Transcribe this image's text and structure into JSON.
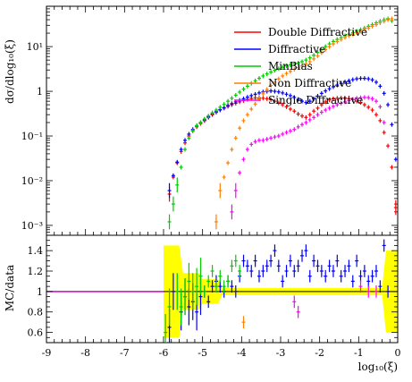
{
  "chart_data": [
    {
      "type": "scatter",
      "panel": "main",
      "ylabel": "dσ/dlog₁₀(ξ)",
      "yscale": "log",
      "ylim": [
        0.0006,
        80
      ],
      "xlim": [
        -9,
        0
      ],
      "y_tick_labels": [
        "10⁻³",
        "10⁻²",
        "10⁻¹",
        "1",
        "10¹"
      ],
      "y_tick_values": [
        0.001,
        0.01,
        0.1,
        1,
        10
      ],
      "legend_placement": "top-right",
      "series": [
        {
          "name": "Double Diffractive",
          "color": "#ff0000",
          "x": [
            -5.85,
            -5.75,
            -5.65,
            -5.55,
            -5.45,
            -5.35,
            -5.25,
            -5.15,
            -5.05,
            -4.95,
            -4.85,
            -4.75,
            -4.65,
            -4.55,
            -4.45,
            -4.35,
            -4.25,
            -4.15,
            -4.05,
            -3.95,
            -3.85,
            -3.75,
            -3.65,
            -3.55,
            -3.45,
            -3.35,
            -3.25,
            -3.15,
            -3.05,
            -2.95,
            -2.85,
            -2.75,
            -2.65,
            -2.55,
            -2.45,
            -2.35,
            -2.25,
            -2.15,
            -2.05,
            -1.95,
            -1.85,
            -1.75,
            -1.65,
            -1.55,
            -1.45,
            -1.35,
            -1.25,
            -1.15,
            -1.05,
            -0.95,
            -0.85,
            -0.75,
            -0.65,
            -0.55,
            -0.45,
            -0.35,
            -0.25,
            -0.15,
            -0.05
          ],
          "y": [
            0.005,
            0.012,
            0.025,
            0.045,
            0.07,
            0.1,
            0.13,
            0.16,
            0.19,
            0.22,
            0.26,
            0.3,
            0.34,
            0.38,
            0.42,
            0.46,
            0.5,
            0.54,
            0.58,
            0.62,
            0.66,
            0.69,
            0.71,
            0.71,
            0.7,
            0.68,
            0.65,
            0.6,
            0.55,
            0.5,
            0.45,
            0.4,
            0.36,
            0.31,
            0.28,
            0.26,
            0.3,
            0.36,
            0.42,
            0.5,
            0.58,
            0.64,
            0.68,
            0.7,
            0.71,
            0.7,
            0.68,
            0.65,
            0.6,
            0.56,
            0.5,
            0.44,
            0.38,
            0.3,
            0.22,
            0.12,
            0.06,
            0.02,
            0.0025
          ]
        },
        {
          "name": "Diffractive",
          "color": "#0000ff",
          "x": [
            -5.85,
            -5.75,
            -5.65,
            -5.55,
            -5.45,
            -5.35,
            -5.25,
            -5.15,
            -5.05,
            -4.95,
            -4.85,
            -4.75,
            -4.65,
            -4.55,
            -4.45,
            -4.35,
            -4.25,
            -4.15,
            -4.05,
            -3.95,
            -3.85,
            -3.75,
            -3.65,
            -3.55,
            -3.45,
            -3.35,
            -3.25,
            -3.15,
            -3.05,
            -2.95,
            -2.85,
            -2.75,
            -2.65,
            -2.55,
            -2.45,
            -2.35,
            -2.25,
            -2.15,
            -2.05,
            -1.95,
            -1.85,
            -1.75,
            -1.65,
            -1.55,
            -1.45,
            -1.35,
            -1.25,
            -1.15,
            -1.05,
            -0.95,
            -0.85,
            -0.75,
            -0.65,
            -0.55,
            -0.45,
            -0.35,
            -0.25,
            -0.15,
            -0.05
          ],
          "y": [
            0.006,
            0.013,
            0.026,
            0.05,
            0.08,
            0.11,
            0.14,
            0.17,
            0.2,
            0.23,
            0.27,
            0.31,
            0.35,
            0.39,
            0.43,
            0.48,
            0.53,
            0.58,
            0.63,
            0.68,
            0.74,
            0.8,
            0.86,
            0.92,
            0.97,
            1.0,
            1.02,
            1.0,
            0.97,
            0.92,
            0.86,
            0.8,
            0.73,
            0.66,
            0.6,
            0.56,
            0.6,
            0.68,
            0.78,
            0.9,
            1.02,
            1.14,
            1.26,
            1.38,
            1.5,
            1.62,
            1.72,
            1.82,
            1.9,
            1.95,
            1.95,
            1.9,
            1.8,
            1.6,
            1.3,
            0.9,
            0.5,
            0.18,
            0.03
          ]
        },
        {
          "name": "MinBias",
          "color": "#00cc00",
          "x": [
            -5.85,
            -5.75,
            -5.65,
            -5.55,
            -5.45,
            -5.35,
            -5.25,
            -5.15,
            -5.05,
            -4.95,
            -4.85,
            -4.75,
            -4.65,
            -4.55,
            -4.45,
            -4.35,
            -4.25,
            -4.15,
            -4.05,
            -3.95,
            -3.85,
            -3.75,
            -3.65,
            -3.55,
            -3.45,
            -3.35,
            -3.25,
            -3.15,
            -3.05,
            -2.95,
            -2.85,
            -2.75,
            -2.65,
            -2.55,
            -2.45,
            -2.35,
            -2.25,
            -2.15,
            -2.05,
            -1.95,
            -1.85,
            -1.75,
            -1.65,
            -1.55,
            -1.45,
            -1.35,
            -1.25,
            -1.15,
            -1.05,
            -0.95,
            -0.85,
            -0.75,
            -0.65,
            -0.55,
            -0.45,
            -0.35,
            -0.25,
            -0.15
          ],
          "y": [
            0.0012,
            0.003,
            0.008,
            0.02,
            0.05,
            0.09,
            0.13,
            0.17,
            0.2,
            0.24,
            0.28,
            0.33,
            0.38,
            0.44,
            0.51,
            0.6,
            0.7,
            0.82,
            0.96,
            1.12,
            1.3,
            1.5,
            1.72,
            1.96,
            2.2,
            2.45,
            2.7,
            2.95,
            3.2,
            3.45,
            3.7,
            3.9,
            4.1,
            4.3,
            4.6,
            5.0,
            5.6,
            6.4,
            7.4,
            8.6,
            10,
            11.5,
            13,
            14.5,
            16,
            17.5,
            19,
            20.5,
            22,
            24,
            26,
            28.5,
            31,
            34,
            37,
            40,
            42,
            38
          ]
        },
        {
          "name": "Non Diffractive",
          "color": "#ff7f00",
          "x": [
            -4.65,
            -4.55,
            -4.45,
            -4.35,
            -4.25,
            -4.15,
            -4.05,
            -3.95,
            -3.85,
            -3.75,
            -3.65,
            -3.55,
            -3.45,
            -3.35,
            -3.25,
            -3.15,
            -3.05,
            -2.95,
            -2.85,
            -2.75,
            -2.65,
            -2.55,
            -2.45,
            -2.35,
            -2.25,
            -2.15,
            -2.05,
            -1.95,
            -1.85,
            -1.75,
            -1.65,
            -1.55,
            -1.45,
            -1.35,
            -1.25,
            -1.15,
            -1.05,
            -0.95,
            -0.85,
            -0.75,
            -0.65,
            -0.55,
            -0.45,
            -0.35,
            -0.25,
            -0.15
          ],
          "y": [
            0.0012,
            0.006,
            0.012,
            0.025,
            0.05,
            0.09,
            0.15,
            0.22,
            0.3,
            0.4,
            0.52,
            0.68,
            0.88,
            1.1,
            1.35,
            1.6,
            1.9,
            2.2,
            2.5,
            2.8,
            3.1,
            3.4,
            3.7,
            4.1,
            4.6,
            5.3,
            6.2,
            7.3,
            8.6,
            10,
            11.5,
            13,
            14.5,
            16,
            17.5,
            19,
            20.5,
            22,
            24,
            26,
            28.5,
            31,
            34,
            37,
            40,
            42
          ]
        },
        {
          "name": "Single Diffractive",
          "color": "#ff00ff",
          "x": [
            -4.25,
            -4.15,
            -4.05,
            -3.95,
            -3.85,
            -3.75,
            -3.65,
            -3.55,
            -3.45,
            -3.35,
            -3.25,
            -3.15,
            -3.05,
            -2.95,
            -2.85,
            -2.75,
            -2.65,
            -2.55,
            -2.45,
            -2.35,
            -2.25,
            -2.15,
            -2.05,
            -1.95,
            -1.85,
            -1.75,
            -1.65,
            -1.55,
            -1.45,
            -1.35,
            -1.25,
            -1.15,
            -1.05,
            -0.95,
            -0.85,
            -0.75,
            -0.65,
            -0.55,
            -0.45,
            -0.35
          ],
          "y": [
            0.002,
            0.006,
            0.015,
            0.03,
            0.05,
            0.065,
            0.075,
            0.08,
            0.08,
            0.085,
            0.09,
            0.095,
            0.1,
            0.11,
            0.12,
            0.13,
            0.14,
            0.16,
            0.18,
            0.2,
            0.23,
            0.26,
            0.3,
            0.34,
            0.38,
            0.42,
            0.46,
            0.5,
            0.54,
            0.58,
            0.62,
            0.66,
            0.7,
            0.72,
            0.73,
            0.72,
            0.68,
            0.6,
            0.45,
            0.2
          ]
        }
      ]
    },
    {
      "type": "scatter",
      "panel": "ratio",
      "ylabel": "MC/data",
      "xlabel": "log₁₀(ξ)",
      "xlim": [
        -9,
        0
      ],
      "ylim": [
        0.5,
        1.55
      ],
      "x_tick_labels": [
        "-9",
        "-8",
        "-7",
        "-6",
        "-5",
        "-4",
        "-3",
        "-2",
        "-1",
        "0"
      ],
      "y_tick_labels": [
        "0.6",
        "0.8",
        "1",
        "1.2",
        "1.4"
      ],
      "y_tick_values": [
        0.6,
        0.8,
        1.0,
        1.2,
        1.4
      ],
      "band_color": "#ffff00",
      "reference_line": 1,
      "reference_line_color": "#cc00cc",
      "series": [
        {
          "name": "Diffractive",
          "color": "#0000ff",
          "x": [
            -5.85,
            -5.75,
            -5.55,
            -5.45,
            -5.35,
            -5.25,
            -5.15,
            -5.05,
            -4.95,
            -4.85,
            -4.75,
            -4.65,
            -4.55,
            -4.45,
            -4.35,
            -4.25,
            -4.15,
            -4.05,
            -3.95,
            -3.85,
            -3.75,
            -3.65,
            -3.55,
            -3.45,
            -3.35,
            -3.25,
            -3.15,
            -3.05,
            -2.95,
            -2.85,
            -2.75,
            -2.65,
            -2.55,
            -2.45,
            -2.35,
            -2.25,
            -2.15,
            -2.05,
            -1.95,
            -1.85,
            -1.75,
            -1.65,
            -1.55,
            -1.45,
            -1.35,
            -1.25,
            -1.15,
            -1.05,
            -0.95,
            -0.85,
            -0.75,
            -0.65,
            -0.55,
            -0.45,
            -0.35,
            -0.25
          ],
          "y": [
            0.65,
            1.0,
            0.8,
            0.95,
            0.85,
            0.9,
            0.8,
            0.95,
            1.0,
            0.9,
            1.05,
            1.1,
            1.05,
            1.0,
            1.1,
            1.05,
            1.0,
            1.15,
            1.3,
            1.25,
            1.2,
            1.3,
            1.15,
            1.2,
            1.25,
            1.3,
            1.4,
            1.25,
            1.1,
            1.2,
            1.3,
            1.2,
            1.25,
            1.35,
            1.4,
            1.15,
            1.3,
            1.25,
            1.2,
            1.15,
            1.25,
            1.2,
            1.3,
            1.15,
            1.2,
            1.25,
            1.1,
            1.3,
            1.15,
            1.2,
            1.1,
            1.15,
            1.2,
            1.05,
            1.45,
            1.0
          ]
        },
        {
          "name": "MinBias",
          "color": "#00cc00",
          "x": [
            -5.95,
            -5.85,
            -5.65,
            -5.55,
            -5.45,
            -5.35,
            -5.25,
            -5.15,
            -5.05,
            -4.95,
            -4.85,
            -4.75,
            -4.65,
            -4.55,
            -4.45,
            -4.35,
            -4.25,
            -4.15,
            -4.05
          ],
          "y": [
            0.6,
            0.85,
            1.0,
            0.85,
            0.95,
            1.1,
            1.0,
            1.05,
            1.15,
            1.0,
            1.1,
            1.2,
            1.05,
            1.15,
            1.05,
            1.1,
            1.25,
            1.3,
            1.2
          ]
        },
        {
          "name": "Non Diffractive",
          "color": "#ff7f00",
          "x": [
            -3.95
          ],
          "y": [
            0.7
          ]
        },
        {
          "name": "Single Diffractive",
          "color": "#ff00ff",
          "x": [
            -2.65,
            -2.55,
            -0.95,
            -0.75,
            -0.55
          ],
          "y": [
            0.9,
            0.8,
            1.05,
            1.0,
            1.0
          ]
        }
      ]
    }
  ]
}
